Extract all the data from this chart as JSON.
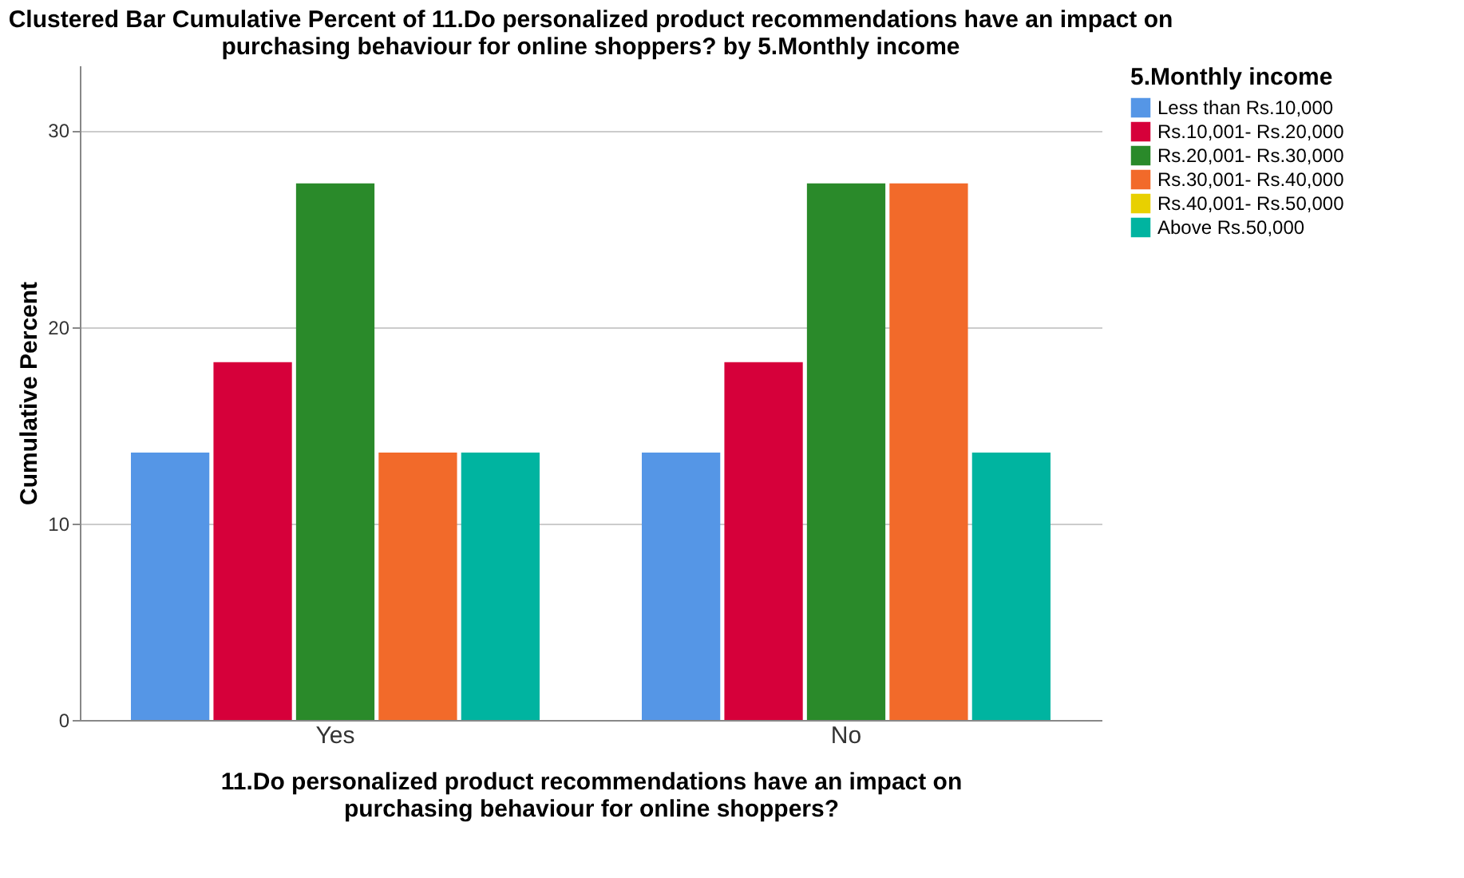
{
  "chart_data": {
    "type": "bar",
    "title": [
      "Clustered Bar Cumulative Percent of 11.Do personalized product recommendations have an impact on",
      "purchasing behaviour for online shoppers? by 5.Monthly income"
    ],
    "xlabel": [
      "11.Do personalized product recommendations have an impact on",
      "purchasing behaviour for online shoppers?"
    ],
    "ylabel": "Cumulative Percent",
    "legend_title": "5.Monthly income",
    "categories": [
      "Yes",
      "No"
    ],
    "series": [
      {
        "name": "Less than Rs.10,000",
        "color": "#5596e6",
        "values": [
          13.6,
          13.6
        ]
      },
      {
        "name": "Rs.10,001- Rs.20,000",
        "color": "#d6003a",
        "values": [
          18.2,
          18.2
        ]
      },
      {
        "name": "Rs.20,001- Rs.30,000",
        "color": "#2a8a2a",
        "values": [
          27.3,
          27.3
        ]
      },
      {
        "name": "Rs.30,001- Rs.40,000",
        "color": "#f26a2a",
        "values": [
          13.6,
          27.3
        ]
      },
      {
        "name": "Rs.40,001- Rs.50,000",
        "color": "#e8d000",
        "values": [
          null,
          null
        ]
      },
      {
        "name": "Above Rs.50,000",
        "color": "#00b4a0",
        "values": [
          13.6,
          13.6
        ]
      }
    ],
    "ylim": [
      0,
      33.3
    ],
    "yticks": [
      0,
      10,
      20,
      30
    ],
    "grid": "y",
    "legend": "right"
  }
}
